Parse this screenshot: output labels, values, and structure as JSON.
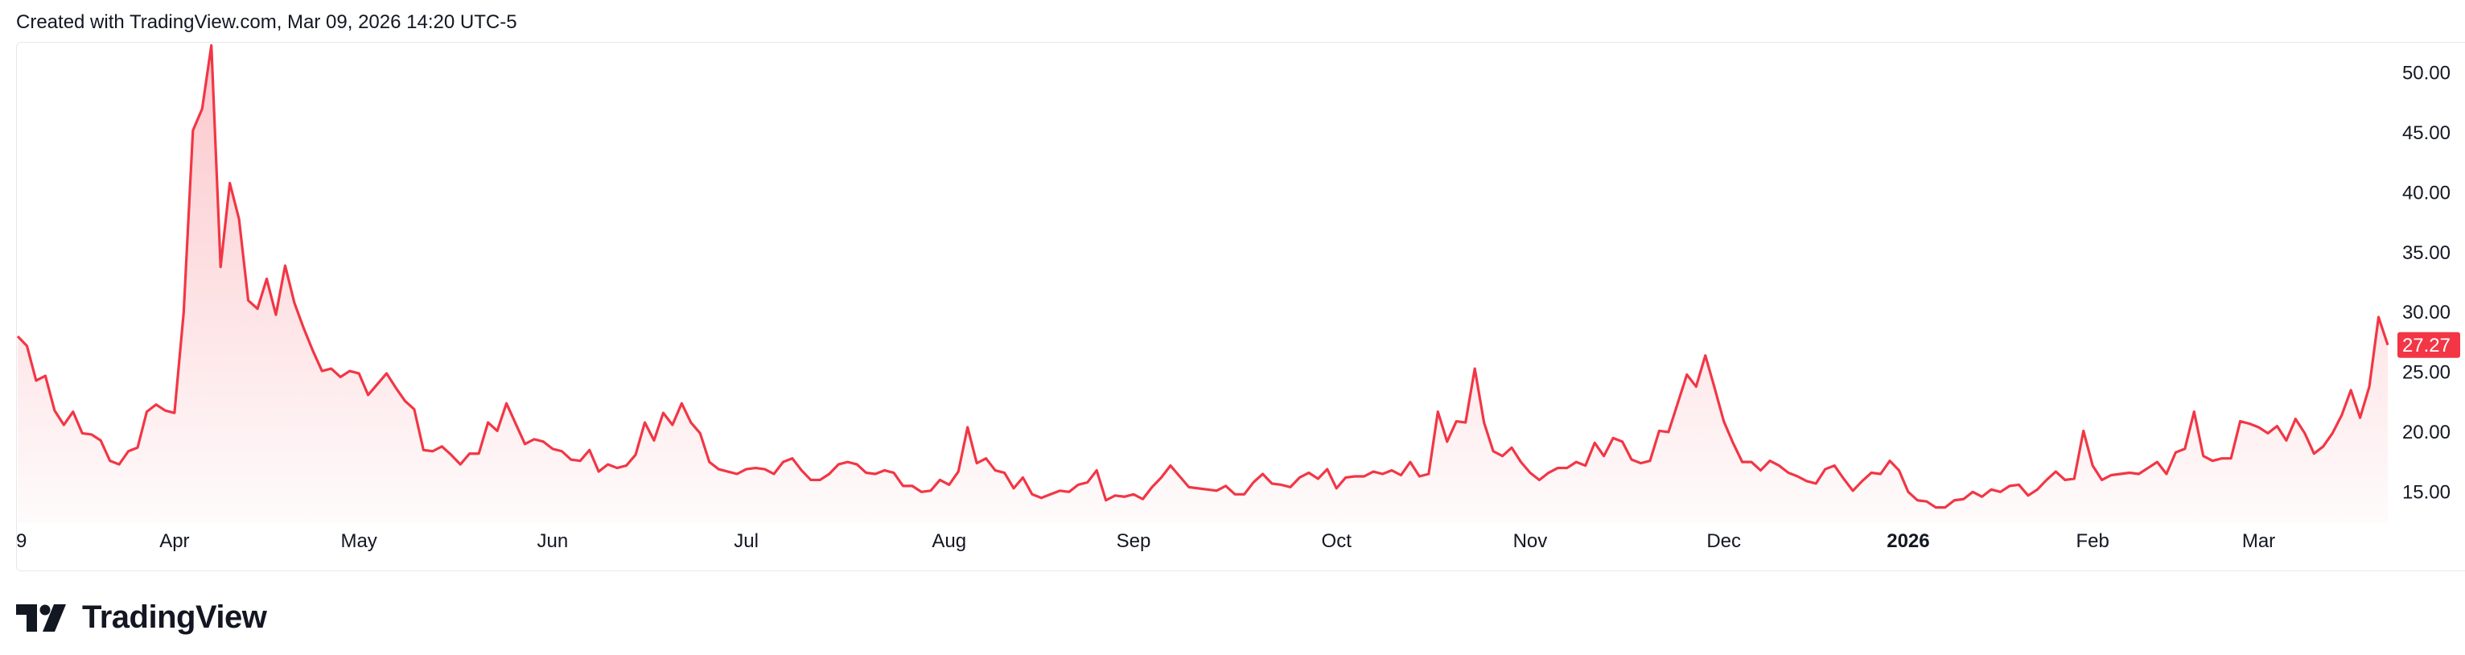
{
  "caption": "Created with TradingView.com, Mar 09, 2026 14:20 UTC-5",
  "brand": "TradingView",
  "colors": {
    "line": "#f23645",
    "fill_top": "rgba(242,54,69,0.28)",
    "fill_bottom": "rgba(242,54,69,0.02)",
    "label_bg": "#f23645",
    "axis_text": "#131722"
  },
  "chart_data": {
    "type": "area",
    "title": "",
    "xlabel": "",
    "ylabel": "",
    "ylim": [
      12.4,
      52.6
    ],
    "grid": false,
    "y_ticks": [
      "50.00",
      "45.00",
      "40.00",
      "35.00",
      "30.00",
      "25.00",
      "20.00",
      "15.00"
    ],
    "y_tick_values": [
      50,
      45,
      40,
      35,
      30,
      25,
      20,
      15
    ],
    "x_ticks": [
      {
        "label": "9",
        "t": 0,
        "bold": false
      },
      {
        "label": "Apr",
        "t": 17,
        "bold": false
      },
      {
        "label": "May",
        "t": 37,
        "bold": false
      },
      {
        "label": "Jun",
        "t": 58,
        "bold": false
      },
      {
        "label": "Jul",
        "t": 79,
        "bold": false
      },
      {
        "label": "Aug",
        "t": 101,
        "bold": false
      },
      {
        "label": "Sep",
        "t": 121,
        "bold": false
      },
      {
        "label": "Oct",
        "t": 143,
        "bold": false
      },
      {
        "label": "Nov",
        "t": 164,
        "bold": false
      },
      {
        "label": "Dec",
        "t": 185,
        "bold": false
      },
      {
        "label": "2026",
        "t": 205,
        "bold": true
      },
      {
        "label": "Feb",
        "t": 225,
        "bold": false
      },
      {
        "label": "Mar",
        "t": 243,
        "bold": false
      }
    ],
    "last_value_label": "27.27",
    "series": [
      {
        "values": [
          28.0,
          27.2,
          24.3,
          24.7,
          21.8,
          20.6,
          21.7,
          19.9,
          19.8,
          19.3,
          17.6,
          17.3,
          18.4,
          18.7,
          21.7,
          22.3,
          21.8,
          21.6,
          30.0,
          45.2,
          47.0,
          52.3,
          33.8,
          40.8,
          37.8,
          31.0,
          30.3,
          32.8,
          29.8,
          33.9,
          30.8,
          28.7,
          26.8,
          25.1,
          25.3,
          24.6,
          25.1,
          24.9,
          23.1,
          24.0,
          24.9,
          23.7,
          22.6,
          21.9,
          18.5,
          18.4,
          18.8,
          18.1,
          17.3,
          18.2,
          18.2,
          20.8,
          20.1,
          22.4,
          20.7,
          19.0,
          19.4,
          19.2,
          18.6,
          18.4,
          17.7,
          17.6,
          18.5,
          16.7,
          17.3,
          17.0,
          17.2,
          18.1,
          20.8,
          19.3,
          21.6,
          20.6,
          22.4,
          20.8,
          19.9,
          17.5,
          16.9,
          16.7,
          16.5,
          16.9,
          17.0,
          16.9,
          16.5,
          17.5,
          17.8,
          16.8,
          16.0,
          16.0,
          16.5,
          17.3,
          17.5,
          17.3,
          16.6,
          16.5,
          16.8,
          16.6,
          15.5,
          15.5,
          15.0,
          15.1,
          16.0,
          15.6,
          16.7,
          20.4,
          17.4,
          17.8,
          16.8,
          16.6,
          15.3,
          16.2,
          14.8,
          14.5,
          14.8,
          15.1,
          15.0,
          15.6,
          15.8,
          16.8,
          14.3,
          14.7,
          14.6,
          14.8,
          14.4,
          15.4,
          16.2,
          17.2,
          16.3,
          15.4,
          15.3,
          15.2,
          15.1,
          15.5,
          14.8,
          14.8,
          15.8,
          16.5,
          15.7,
          15.6,
          15.4,
          16.2,
          16.6,
          16.1,
          16.9,
          15.3,
          16.2,
          16.3,
          16.3,
          16.7,
          16.5,
          16.8,
          16.4,
          17.5,
          16.3,
          16.5,
          21.7,
          19.2,
          20.9,
          20.8,
          25.3,
          20.8,
          18.4,
          18.0,
          18.7,
          17.5,
          16.6,
          16.0,
          16.6,
          17.0,
          17.0,
          17.5,
          17.2,
          19.1,
          18.0,
          19.5,
          19.2,
          17.7,
          17.4,
          17.6,
          20.1,
          20.0,
          22.4,
          24.8,
          23.8,
          26.4,
          23.7,
          20.9,
          19.1,
          17.5,
          17.5,
          16.8,
          17.6,
          17.2,
          16.6,
          16.3,
          15.9,
          15.7,
          16.9,
          17.2,
          16.1,
          15.1,
          15.9,
          16.6,
          16.5,
          17.6,
          16.8,
          15.0,
          14.3,
          14.2,
          13.7,
          13.7,
          14.3,
          14.4,
          15.0,
          14.6,
          15.2,
          15.0,
          15.5,
          15.6,
          14.7,
          15.2,
          16.0,
          16.7,
          16.0,
          16.1,
          20.1,
          17.2,
          16.0,
          16.4,
          16.5,
          16.6,
          16.5,
          17.0,
          17.5,
          16.5,
          18.3,
          18.6,
          21.7,
          18.0,
          17.6,
          17.8,
          17.8,
          20.9,
          20.7,
          20.4,
          19.9,
          20.5,
          19.3,
          21.1,
          19.9,
          18.2,
          18.8,
          19.9,
          21.4,
          23.5,
          21.2,
          23.8,
          29.6,
          27.27
        ]
      }
    ]
  }
}
